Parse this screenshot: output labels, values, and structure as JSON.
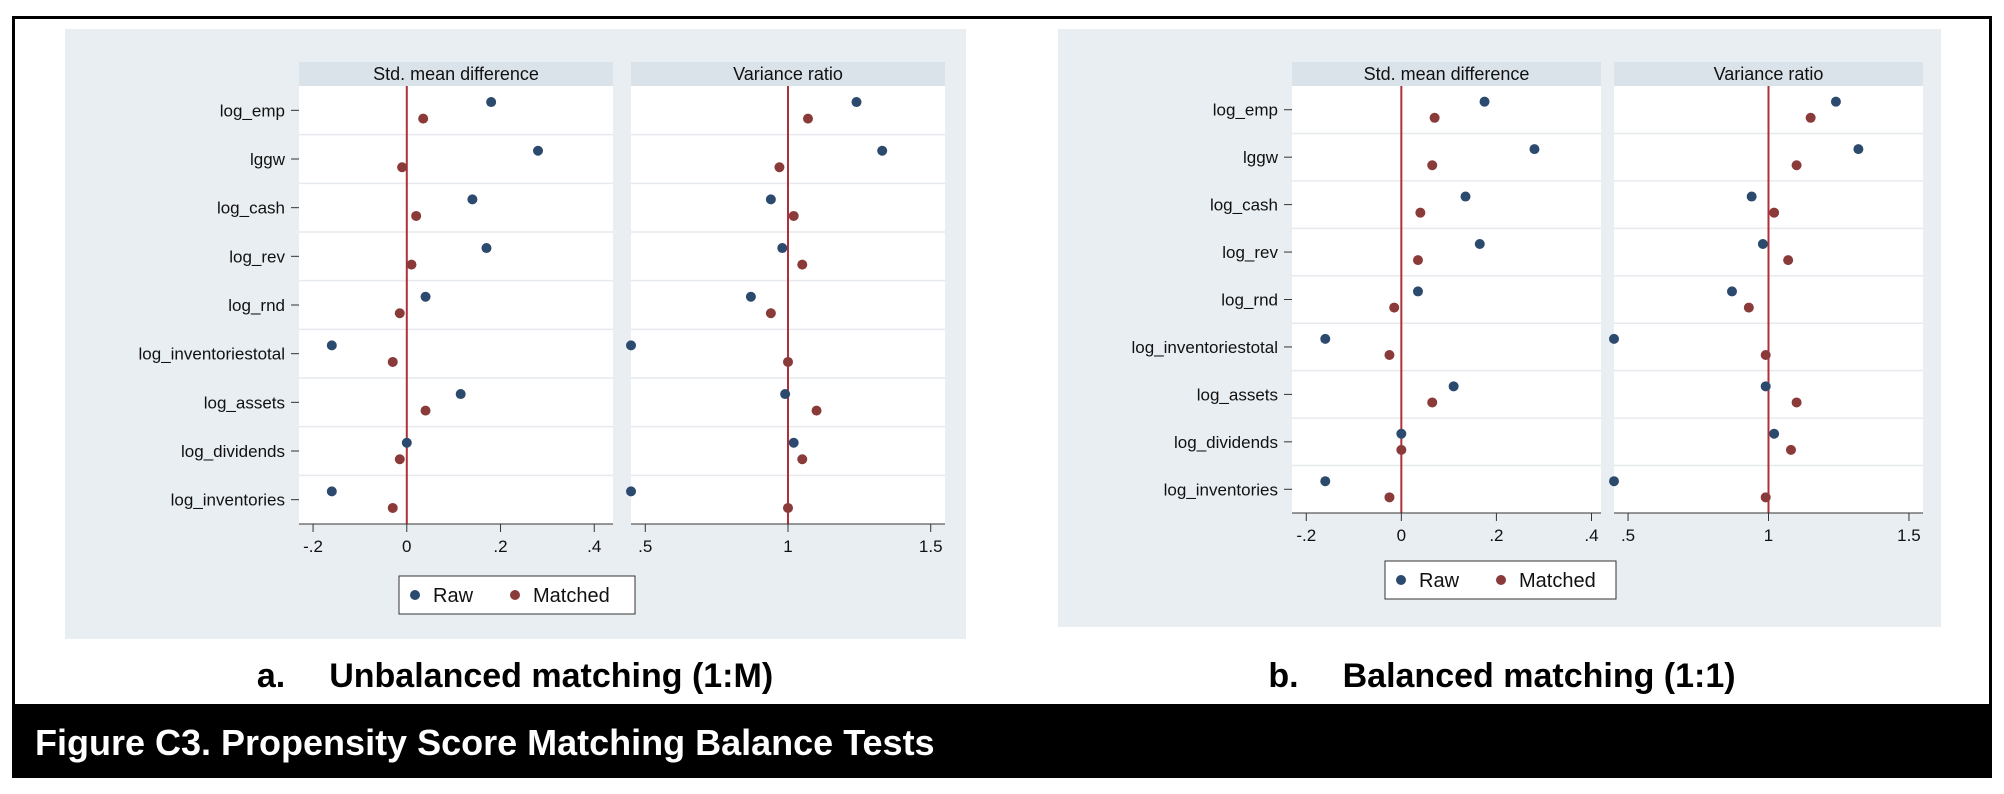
{
  "figure_title": "Figure C3. Propensity Score Matching Balance Tests",
  "colors": {
    "raw": "#2c4a6e",
    "matched": "#8b3a3a",
    "refline": "#b0303a",
    "panel_bg": "#e9eef2",
    "strip_bg": "#dbe3ea"
  },
  "chart_data": [
    {
      "type": "scatter",
      "caption_letter": "a.",
      "caption_text": "Unbalanced matching (1:M)",
      "variables": [
        "log_emp",
        "lggw",
        "log_cash",
        "log_rev",
        "log_rnd",
        "log_inventoriestotal",
        "log_assets",
        "log_dividends",
        "log_inventories"
      ],
      "legend": [
        "Raw",
        "Matched"
      ],
      "legend_position": "bottom",
      "facets": [
        {
          "title": "Std. mean difference",
          "xlim": [
            -0.23,
            0.44
          ],
          "ticks": [
            -0.2,
            0,
            0.2,
            0.4
          ],
          "tick_labels": [
            "-.2",
            "0",
            ".2",
            ".4"
          ],
          "refline": 0,
          "raw": [
            0.18,
            0.28,
            0.14,
            0.17,
            0.04,
            -0.16,
            0.115,
            0.0,
            -0.16
          ],
          "matched": [
            0.035,
            -0.01,
            0.02,
            0.01,
            -0.015,
            -0.03,
            0.04,
            -0.015,
            -0.03
          ]
        },
        {
          "title": "Variance ratio",
          "xlim": [
            0.45,
            1.55
          ],
          "ticks": [
            0.5,
            1,
            1.5
          ],
          "tick_labels": [
            ".5",
            "1",
            "1.5"
          ],
          "refline": 1,
          "raw": [
            1.24,
            1.33,
            0.94,
            0.98,
            0.87,
            0.45,
            0.99,
            1.02,
            0.45
          ],
          "matched": [
            1.07,
            0.97,
            1.02,
            1.05,
            0.94,
            1.0,
            1.1,
            1.05,
            1.0
          ]
        }
      ]
    },
    {
      "type": "scatter",
      "caption_letter": "b.",
      "caption_text": "Balanced matching (1:1)",
      "variables": [
        "log_emp",
        "lggw",
        "log_cash",
        "log_rev",
        "log_rnd",
        "log_inventoriestotal",
        "log_assets",
        "log_dividends",
        "log_inventories"
      ],
      "legend": [
        "Raw",
        "Matched"
      ],
      "legend_position": "bottom",
      "facets": [
        {
          "title": "Std. mean difference",
          "xlim": [
            -0.23,
            0.42
          ],
          "ticks": [
            -0.2,
            0,
            0.2,
            0.4
          ],
          "tick_labels": [
            "-.2",
            "0",
            ".2",
            ".4"
          ],
          "refline": 0,
          "raw": [
            0.175,
            0.28,
            0.135,
            0.165,
            0.035,
            -0.16,
            0.11,
            0.0,
            -0.16
          ],
          "matched": [
            0.07,
            0.065,
            0.04,
            0.035,
            -0.015,
            -0.025,
            0.065,
            0.0,
            -0.025
          ]
        },
        {
          "title": "Variance ratio",
          "xlim": [
            0.45,
            1.55
          ],
          "ticks": [
            0.5,
            1,
            1.5
          ],
          "tick_labels": [
            ".5",
            "1",
            "1.5"
          ],
          "refline": 1,
          "raw": [
            1.24,
            1.32,
            0.94,
            0.98,
            0.87,
            0.45,
            0.99,
            1.02,
            0.45
          ],
          "matched": [
            1.15,
            1.1,
            1.02,
            1.07,
            0.93,
            0.99,
            1.1,
            1.08,
            0.99
          ]
        }
      ]
    }
  ]
}
